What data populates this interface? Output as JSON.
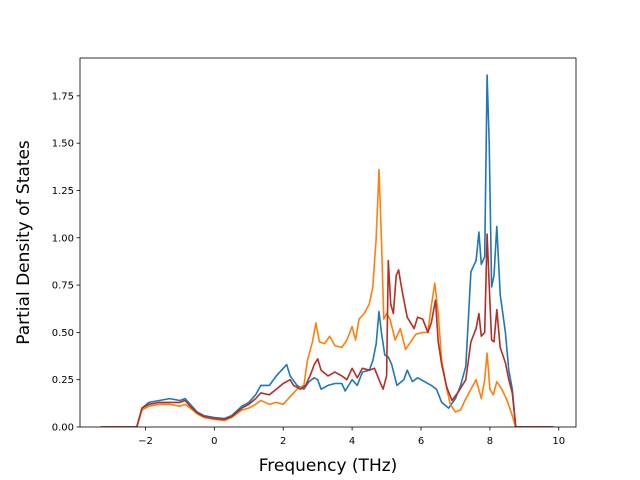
{
  "chart_data": {
    "type": "line",
    "title": "",
    "xlabel": "Frequency (THz)",
    "ylabel": "Partial Density of States",
    "xlim": [
      -3.9,
      10.5
    ],
    "ylim": [
      0,
      1.95
    ],
    "xticks": [
      -2,
      0,
      2,
      4,
      6,
      8,
      10
    ],
    "yticks": [
      0.0,
      0.25,
      0.5,
      0.75,
      1.0,
      1.25,
      1.5,
      1.75
    ],
    "xtick_labels": [
      "−2",
      "0",
      "2",
      "4",
      "6",
      "8",
      "10"
    ],
    "ytick_labels": [
      "0.00",
      "0.25",
      "0.50",
      "0.75",
      "1.00",
      "1.25",
      "1.50",
      "1.75"
    ],
    "grid": false,
    "series": [
      {
        "color": "#1f77b4",
        "points": [
          [
            -3.3,
            0
          ],
          [
            -2.25,
            0
          ],
          [
            -2.1,
            0.1
          ],
          [
            -1.9,
            0.13
          ],
          [
            -1.6,
            0.14
          ],
          [
            -1.3,
            0.15
          ],
          [
            -1,
            0.14
          ],
          [
            -0.85,
            0.15
          ],
          [
            -0.7,
            0.12
          ],
          [
            -0.5,
            0.08
          ],
          [
            -0.3,
            0.06
          ],
          [
            0,
            0.05
          ],
          [
            0.3,
            0.045
          ],
          [
            0.5,
            0.06
          ],
          [
            0.8,
            0.11
          ],
          [
            1,
            0.13
          ],
          [
            1.2,
            0.17
          ],
          [
            1.35,
            0.22
          ],
          [
            1.6,
            0.22
          ],
          [
            1.8,
            0.27
          ],
          [
            1.95,
            0.3
          ],
          [
            2.1,
            0.33
          ],
          [
            2.2,
            0.27
          ],
          [
            2.4,
            0.22
          ],
          [
            2.6,
            0.2
          ],
          [
            2.75,
            0.24
          ],
          [
            2.9,
            0.26
          ],
          [
            3,
            0.25
          ],
          [
            3.1,
            0.2
          ],
          [
            3.3,
            0.22
          ],
          [
            3.5,
            0.23
          ],
          [
            3.7,
            0.23
          ],
          [
            3.8,
            0.19
          ],
          [
            4,
            0.25
          ],
          [
            4.15,
            0.22
          ],
          [
            4.3,
            0.29
          ],
          [
            4.5,
            0.3
          ],
          [
            4.6,
            0.35
          ],
          [
            4.7,
            0.44
          ],
          [
            4.78,
            0.61
          ],
          [
            4.85,
            0.5
          ],
          [
            4.95,
            0.38
          ],
          [
            5.05,
            0.37
          ],
          [
            5.15,
            0.33
          ],
          [
            5.3,
            0.22
          ],
          [
            5.5,
            0.25
          ],
          [
            5.6,
            0.3
          ],
          [
            5.75,
            0.24
          ],
          [
            5.9,
            0.26
          ],
          [
            6.1,
            0.24
          ],
          [
            6.3,
            0.22
          ],
          [
            6.45,
            0.2
          ],
          [
            6.6,
            0.13
          ],
          [
            6.8,
            0.1
          ],
          [
            7,
            0.15
          ],
          [
            7.15,
            0.22
          ],
          [
            7.3,
            0.32
          ],
          [
            7.45,
            0.82
          ],
          [
            7.6,
            0.88
          ],
          [
            7.68,
            1.03
          ],
          [
            7.75,
            0.86
          ],
          [
            7.85,
            0.9
          ],
          [
            7.92,
            1.86
          ],
          [
            7.98,
            1.5
          ],
          [
            8.05,
            0.74
          ],
          [
            8.12,
            0.8
          ],
          [
            8.2,
            1.06
          ],
          [
            8.3,
            0.7
          ],
          [
            8.45,
            0.5
          ],
          [
            8.55,
            0.3
          ],
          [
            8.65,
            0.2
          ],
          [
            8.75,
            0
          ],
          [
            9.85,
            0
          ]
        ]
      },
      {
        "color": "#ff7f0e",
        "points": [
          [
            -3.3,
            0
          ],
          [
            -2.25,
            0
          ],
          [
            -2.1,
            0.09
          ],
          [
            -1.9,
            0.11
          ],
          [
            -1.6,
            0.12
          ],
          [
            -1.3,
            0.12
          ],
          [
            -1,
            0.11
          ],
          [
            -0.85,
            0.12
          ],
          [
            -0.7,
            0.1
          ],
          [
            -0.5,
            0.07
          ],
          [
            -0.3,
            0.05
          ],
          [
            0,
            0.04
          ],
          [
            0.3,
            0.035
          ],
          [
            0.5,
            0.05
          ],
          [
            0.8,
            0.09
          ],
          [
            1,
            0.1
          ],
          [
            1.2,
            0.12
          ],
          [
            1.35,
            0.14
          ],
          [
            1.6,
            0.12
          ],
          [
            1.8,
            0.13
          ],
          [
            2,
            0.12
          ],
          [
            2.2,
            0.16
          ],
          [
            2.4,
            0.2
          ],
          [
            2.6,
            0.22
          ],
          [
            2.7,
            0.35
          ],
          [
            2.85,
            0.45
          ],
          [
            2.95,
            0.55
          ],
          [
            3.05,
            0.45
          ],
          [
            3.2,
            0.44
          ],
          [
            3.35,
            0.48
          ],
          [
            3.5,
            0.43
          ],
          [
            3.7,
            0.42
          ],
          [
            3.85,
            0.46
          ],
          [
            4,
            0.53
          ],
          [
            4.1,
            0.46
          ],
          [
            4.2,
            0.57
          ],
          [
            4.35,
            0.6
          ],
          [
            4.5,
            0.65
          ],
          [
            4.6,
            0.74
          ],
          [
            4.7,
            1.0
          ],
          [
            4.78,
            1.36
          ],
          [
            4.85,
            1.0
          ],
          [
            4.92,
            0.57
          ],
          [
            5,
            0.6
          ],
          [
            5.1,
            0.57
          ],
          [
            5.25,
            0.46
          ],
          [
            5.4,
            0.52
          ],
          [
            5.55,
            0.41
          ],
          [
            5.7,
            0.45
          ],
          [
            5.85,
            0.49
          ],
          [
            6.05,
            0.5
          ],
          [
            6.2,
            0.5
          ],
          [
            6.3,
            0.64
          ],
          [
            6.4,
            0.76
          ],
          [
            6.5,
            0.6
          ],
          [
            6.6,
            0.35
          ],
          [
            6.75,
            0.2
          ],
          [
            6.85,
            0.12
          ],
          [
            7,
            0.08
          ],
          [
            7.15,
            0.09
          ],
          [
            7.3,
            0.15
          ],
          [
            7.45,
            0.2
          ],
          [
            7.6,
            0.25
          ],
          [
            7.75,
            0.15
          ],
          [
            7.85,
            0.25
          ],
          [
            7.92,
            0.39
          ],
          [
            8,
            0.2
          ],
          [
            8.1,
            0.17
          ],
          [
            8.2,
            0.24
          ],
          [
            8.35,
            0.2
          ],
          [
            8.5,
            0.14
          ],
          [
            8.65,
            0.06
          ],
          [
            8.75,
            0
          ],
          [
            9.85,
            0
          ]
        ]
      },
      {
        "color": "#b22e26",
        "points": [
          [
            -3.3,
            0
          ],
          [
            -2.25,
            0
          ],
          [
            -2.1,
            0.1
          ],
          [
            -1.9,
            0.12
          ],
          [
            -1.6,
            0.13
          ],
          [
            -1.3,
            0.13
          ],
          [
            -1,
            0.13
          ],
          [
            -0.85,
            0.14
          ],
          [
            -0.7,
            0.11
          ],
          [
            -0.5,
            0.075
          ],
          [
            -0.3,
            0.055
          ],
          [
            0,
            0.045
          ],
          [
            0.3,
            0.04
          ],
          [
            0.5,
            0.055
          ],
          [
            0.8,
            0.1
          ],
          [
            1,
            0.12
          ],
          [
            1.2,
            0.15
          ],
          [
            1.35,
            0.18
          ],
          [
            1.6,
            0.17
          ],
          [
            1.8,
            0.2
          ],
          [
            2,
            0.23
          ],
          [
            2.2,
            0.25
          ],
          [
            2.3,
            0.22
          ],
          [
            2.5,
            0.2
          ],
          [
            2.65,
            0.22
          ],
          [
            2.8,
            0.28
          ],
          [
            2.9,
            0.33
          ],
          [
            3,
            0.36
          ],
          [
            3.1,
            0.3
          ],
          [
            3.3,
            0.27
          ],
          [
            3.5,
            0.29
          ],
          [
            3.7,
            0.27
          ],
          [
            3.85,
            0.25
          ],
          [
            4,
            0.31
          ],
          [
            4.15,
            0.26
          ],
          [
            4.3,
            0.31
          ],
          [
            4.5,
            0.3
          ],
          [
            4.65,
            0.31
          ],
          [
            4.78,
            0.25
          ],
          [
            4.9,
            0.2
          ],
          [
            5,
            0.27
          ],
          [
            5.05,
            0.88
          ],
          [
            5.12,
            0.65
          ],
          [
            5.2,
            0.6
          ],
          [
            5.28,
            0.8
          ],
          [
            5.35,
            0.83
          ],
          [
            5.45,
            0.72
          ],
          [
            5.6,
            0.58
          ],
          [
            5.8,
            0.52
          ],
          [
            5.9,
            0.58
          ],
          [
            6.05,
            0.57
          ],
          [
            6.2,
            0.5
          ],
          [
            6.3,
            0.55
          ],
          [
            6.42,
            0.67
          ],
          [
            6.5,
            0.45
          ],
          [
            6.6,
            0.33
          ],
          [
            6.75,
            0.21
          ],
          [
            6.9,
            0.14
          ],
          [
            7.1,
            0.19
          ],
          [
            7.3,
            0.25
          ],
          [
            7.45,
            0.45
          ],
          [
            7.6,
            0.52
          ],
          [
            7.68,
            0.6
          ],
          [
            7.75,
            0.48
          ],
          [
            7.85,
            0.5
          ],
          [
            7.92,
            1.02
          ],
          [
            7.98,
            0.75
          ],
          [
            8.05,
            0.46
          ],
          [
            8.12,
            0.45
          ],
          [
            8.2,
            0.62
          ],
          [
            8.3,
            0.42
          ],
          [
            8.45,
            0.34
          ],
          [
            8.55,
            0.25
          ],
          [
            8.65,
            0.18
          ],
          [
            8.75,
            0
          ],
          [
            9.85,
            0
          ]
        ]
      }
    ]
  }
}
